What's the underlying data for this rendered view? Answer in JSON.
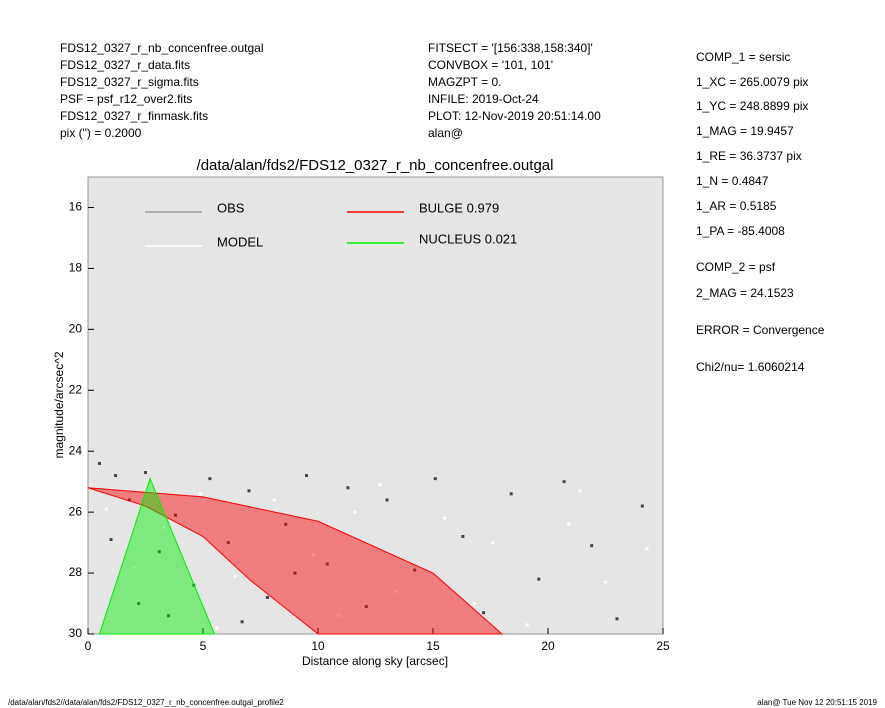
{
  "header": {
    "left": [
      "FDS12_0327_r_nb_concenfree.outgal",
      "FDS12_0327_r_data.fits",
      "FDS12_0327_r_sigma.fits",
      "PSF     = psf_r12_over2.fits",
      "FDS12_0327_r_finmask.fits",
      "pix (\") =  0.2000"
    ],
    "middle": [
      "FITSECT = '[156:338,158:340]'",
      "CONVBOX = '101, 101'",
      "MAGZPT  =              0.",
      "INFILE: 2019-Oct-24",
      "PLOT: 12-Nov-2019 20:51:14.00",
      "alan@"
    ]
  },
  "params": [
    "COMP_1  = sersic",
    "1_XC    = 265.0079 pix",
    "1_YC    = 248.8899 pix",
    "1_MAG   = 19.9457",
    "1_RE    = 36.3737 pix",
    "1_N     = 0.4847",
    "1_AR    = 0.5185",
    "1_PA    = -85.4008",
    "COMP_2  = psf",
    "2_MAG   = 24.1523",
    "ERROR   = Convergence",
    "Chi2/nu=       1.6060214"
  ],
  "footer": {
    "left": "/data/alan/fds2//data/alan/fds2/FDS12_0327_r_nb_concenfree.outgal_profile2",
    "right": "alan@  Tue Nov 12 20:51:15 2019"
  },
  "chart_data": {
    "type": "scatter",
    "title": "/data/alan/fds2/FDS12_0327_r_nb_concenfree.outgal",
    "x_label": "Distance along sky [arcsec]",
    "y_label": "magnitude/arcsec^2",
    "xlim": [
      0,
      25
    ],
    "ylim": [
      30,
      15
    ],
    "xticks": [
      0,
      5,
      10,
      15,
      20,
      25
    ],
    "yticks": [
      16,
      18,
      20,
      22,
      24,
      26,
      28,
      30
    ],
    "series": [
      {
        "name": "OBS",
        "color": "#444444",
        "kind": "points",
        "x": [
          0.5,
          1.2,
          1.8,
          2.5,
          3.1,
          3.8,
          4.6,
          5.3,
          6.1,
          7.0,
          7.8,
          8.6,
          9.5,
          10.4,
          11.3,
          12.1,
          13.0,
          14.2,
          15.1,
          16.3,
          17.2,
          18.4,
          19.6,
          20.7,
          21.9,
          23.0,
          24.1,
          2.2,
          6.7,
          9.0,
          1.0,
          3.5
        ],
        "values": [
          24.4,
          24.8,
          25.6,
          24.7,
          27.3,
          26.1,
          28.4,
          24.9,
          27.0,
          25.3,
          28.8,
          26.4,
          24.8,
          27.7,
          25.2,
          29.1,
          25.6,
          27.9,
          24.9,
          26.8,
          29.3,
          25.4,
          28.2,
          25.0,
          27.1,
          29.5,
          25.8,
          29.0,
          29.6,
          28.0,
          26.9,
          29.4
        ]
      },
      {
        "name": "MODEL",
        "color": "#ffffff",
        "kind": "points",
        "x": [
          0.8,
          2.0,
          3.3,
          4.9,
          6.4,
          8.1,
          9.8,
          11.6,
          13.4,
          15.5,
          17.6,
          19.1,
          20.9,
          22.5,
          24.3,
          12.7,
          16.8,
          21.4,
          5.6,
          10.9
        ],
        "values": [
          25.9,
          27.8,
          26.5,
          25.4,
          28.1,
          25.6,
          27.4,
          26.0,
          28.6,
          26.2,
          27.0,
          29.7,
          26.4,
          28.3,
          27.2,
          25.1,
          29.0,
          25.3,
          29.8,
          29.4
        ]
      },
      {
        "name": "BULGE  0.979",
        "color": "#ff0000",
        "kind": "area",
        "x": [
          0,
          5,
          10,
          15,
          18,
          10,
          7,
          5,
          2.5,
          0
        ],
        "values": [
          25.2,
          25.5,
          26.3,
          28.0,
          30,
          30,
          28.2,
          26.8,
          25.8,
          25.2
        ]
      },
      {
        "name": "NUCLEUS  0.021",
        "color": "#00ee00",
        "kind": "area",
        "x": [
          2.7,
          5.5,
          0.5,
          2.7
        ],
        "values": [
          24.9,
          30,
          30,
          24.9
        ]
      }
    ]
  }
}
